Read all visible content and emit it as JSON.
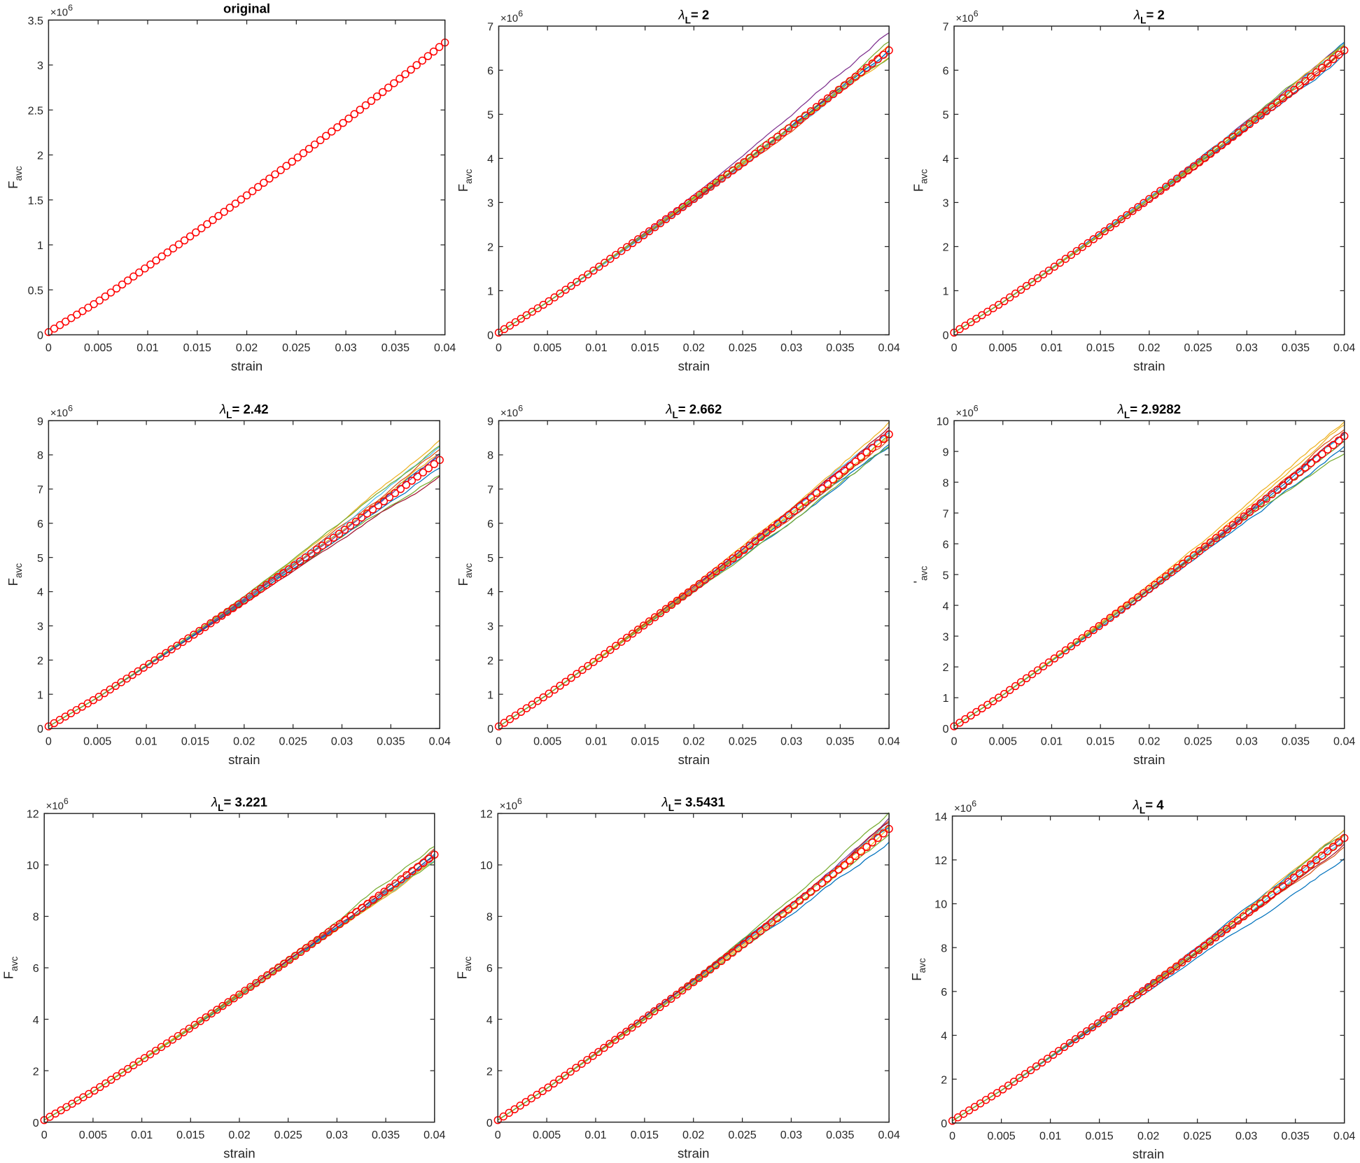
{
  "chart_data": [
    {
      "type": "line",
      "title": "original",
      "title_symbol": "",
      "title_subscript": "",
      "xlabel": "strain",
      "ylabel": "F",
      "ylabel_subscript": "avc",
      "y_multiplier": "×10",
      "y_multiplier_exp": "6",
      "xlim": [
        0,
        0.04
      ],
      "ylim": [
        0,
        3.5
      ],
      "ytick_step": 0.5,
      "x": [
        0,
        0.005,
        0.01,
        0.015,
        0.02,
        0.025,
        0.03,
        0.035,
        0.04
      ],
      "reference": [
        0.03,
        0.37,
        0.76,
        1.15,
        1.55,
        1.96,
        2.38,
        2.81,
        3.25
      ],
      "realizations": 0
    },
    {
      "type": "line",
      "title": "= 2",
      "title_symbol": "λ",
      "title_subscript": "L",
      "xlabel": "strain",
      "ylabel": "F",
      "ylabel_subscript": "avc",
      "y_multiplier": "×10",
      "y_multiplier_exp": "6",
      "xlim": [
        0,
        0.04
      ],
      "ylim": [
        0,
        7
      ],
      "ytick_step": 1,
      "x": [
        0,
        0.005,
        0.01,
        0.015,
        0.02,
        0.025,
        0.03,
        0.035,
        0.04
      ],
      "reference": [
        0.05,
        0.74,
        1.5,
        2.28,
        3.08,
        3.89,
        4.73,
        5.58,
        6.45
      ],
      "realizations": 10
    },
    {
      "type": "line",
      "title": "= 2",
      "title_symbol": "λ",
      "title_subscript": "L",
      "xlabel": "strain",
      "ylabel": "F",
      "ylabel_subscript": "avc",
      "y_multiplier": "×10",
      "y_multiplier_exp": "6",
      "xlim": [
        0,
        0.04
      ],
      "ylim": [
        0,
        7
      ],
      "ytick_step": 1,
      "x": [
        0,
        0.005,
        0.01,
        0.015,
        0.02,
        0.025,
        0.03,
        0.035,
        0.04
      ],
      "reference": [
        0.05,
        0.74,
        1.5,
        2.28,
        3.08,
        3.89,
        4.73,
        5.58,
        6.45
      ],
      "realizations": 10
    },
    {
      "type": "line",
      "title": "= 2.42",
      "title_symbol": "λ",
      "title_subscript": "L",
      "xlabel": "strain",
      "ylabel": "F",
      "ylabel_subscript": "avc",
      "y_multiplier": "×10",
      "y_multiplier_exp": "6",
      "xlim": [
        0,
        0.04
      ],
      "ylim": [
        0,
        9
      ],
      "ytick_step": 1,
      "x": [
        0,
        0.005,
        0.01,
        0.015,
        0.02,
        0.025,
        0.03,
        0.035,
        0.04
      ],
      "reference": [
        0.06,
        0.9,
        1.83,
        2.77,
        3.74,
        4.74,
        5.75,
        6.79,
        7.85
      ],
      "realizations": 10
    },
    {
      "type": "line",
      "title": "= 2.662",
      "title_symbol": "λ",
      "title_subscript": "L",
      "xlabel": "strain",
      "ylabel": "F",
      "ylabel_subscript": "avc",
      "y_multiplier": "×10",
      "y_multiplier_exp": "6",
      "xlim": [
        0,
        0.04
      ],
      "ylim": [
        0,
        9
      ],
      "ytick_step": 1,
      "x": [
        0,
        0.005,
        0.01,
        0.015,
        0.02,
        0.025,
        0.03,
        0.035,
        0.04
      ],
      "reference": [
        0.06,
        0.99,
        2.0,
        3.04,
        4.1,
        5.19,
        6.3,
        7.44,
        8.6
      ],
      "realizations": 10
    },
    {
      "type": "line",
      "title": "= 2.9282",
      "title_symbol": "λ",
      "title_subscript": "L",
      "xlabel": "strain",
      "ylabel": "'",
      "ylabel_subscript": "avc",
      "y_multiplier": "×10",
      "y_multiplier_exp": "6",
      "xlim": [
        0,
        0.04
      ],
      "ylim": [
        0,
        10
      ],
      "ytick_step": 1,
      "x": [
        0,
        0.005,
        0.01,
        0.015,
        0.02,
        0.025,
        0.03,
        0.035,
        0.04
      ],
      "reference": [
        0.07,
        1.09,
        2.21,
        3.36,
        4.53,
        5.73,
        6.96,
        8.22,
        9.5
      ],
      "realizations": 10
    },
    {
      "type": "line",
      "title": "= 3.221",
      "title_symbol": "λ",
      "title_subscript": "L",
      "xlabel": "strain",
      "ylabel": "F",
      "ylabel_subscript": "avc",
      "y_multiplier": "×10",
      "y_multiplier_exp": "6",
      "xlim": [
        0,
        0.04
      ],
      "ylim": [
        0,
        12
      ],
      "ytick_step": 2,
      "x": [
        0,
        0.005,
        0.01,
        0.015,
        0.02,
        0.025,
        0.03,
        0.035,
        0.04
      ],
      "reference": [
        0.08,
        1.19,
        2.42,
        3.67,
        4.96,
        6.27,
        7.62,
        9.0,
        10.4
      ],
      "realizations": 10
    },
    {
      "type": "line",
      "title": "= 3.5431",
      "title_symbol": "λ",
      "title_subscript": "L",
      "xlabel": "strain",
      "ylabel": "F",
      "ylabel_subscript": "avc",
      "y_multiplier": "×10",
      "y_multiplier_exp": "6",
      "xlim": [
        0,
        0.04
      ],
      "ylim": [
        0,
        12
      ],
      "ytick_step": 2,
      "x": [
        0,
        0.005,
        0.01,
        0.015,
        0.02,
        0.025,
        0.03,
        0.035,
        0.04
      ],
      "reference": [
        0.08,
        1.31,
        2.65,
        4.03,
        5.44,
        6.88,
        8.35,
        9.86,
        11.4
      ],
      "realizations": 10
    },
    {
      "type": "line",
      "title": "= 4",
      "title_symbol": "λ",
      "title_subscript": "L",
      "xlabel": "strain",
      "ylabel": "F",
      "ylabel_subscript": "avc",
      "y_multiplier": "×10",
      "y_multiplier_exp": "6",
      "xlim": [
        0,
        0.04
      ],
      "ylim": [
        0,
        14
      ],
      "ytick_step": 2,
      "x": [
        0,
        0.005,
        0.01,
        0.015,
        0.02,
        0.025,
        0.03,
        0.035,
        0.04
      ],
      "reference": [
        0.1,
        1.49,
        3.02,
        4.59,
        6.2,
        7.84,
        9.52,
        11.24,
        13.0
      ],
      "realizations": 10
    }
  ],
  "xtick_labels": [
    "0",
    "0.005",
    "0.01",
    "0.015",
    "0.02",
    "0.025",
    "0.03",
    "0.035",
    "0.04"
  ],
  "colors": {
    "reference_marker": "#ff0000",
    "axis": "#262626",
    "realizations": [
      "#0072bd",
      "#d95319",
      "#edb120",
      "#7e2f8e",
      "#77ac30",
      "#4dbeee",
      "#a2142f",
      "#0072bd",
      "#edb120",
      "#77ac30"
    ]
  }
}
